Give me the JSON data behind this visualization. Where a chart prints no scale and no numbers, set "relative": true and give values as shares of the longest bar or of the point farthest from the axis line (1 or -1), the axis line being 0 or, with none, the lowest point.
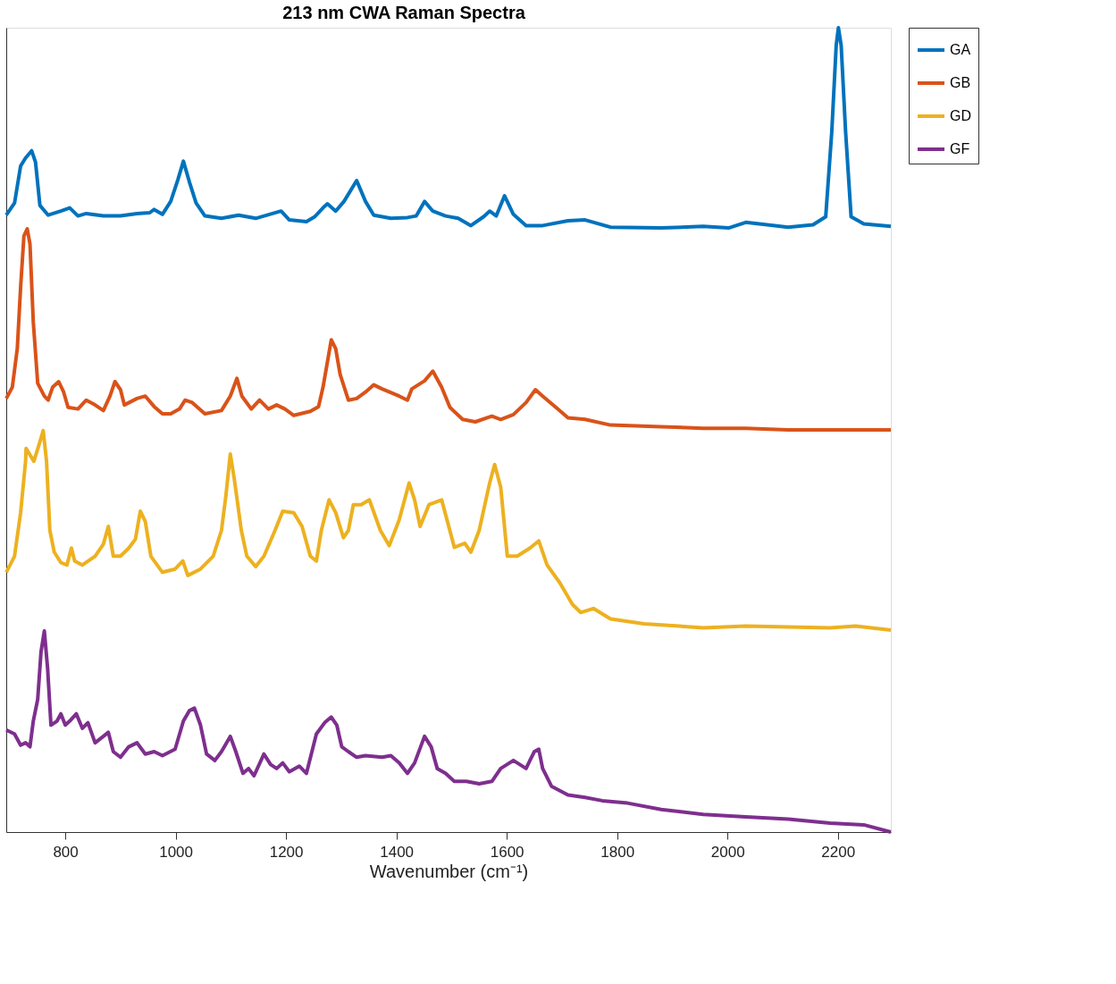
{
  "chart_data": {
    "type": "line",
    "title": "213 nm CWA Raman Spectra",
    "xlabel": "Wavenumber (cm⁻¹)",
    "relative": true,
    "legend": "top right",
    "xlim": [
      693,
      2296
    ],
    "xticks": [
      800,
      1000,
      1200,
      1400,
      1600,
      1800,
      2000,
      2200
    ],
    "series": [
      {
        "name": "GA",
        "color": "#0072bd",
        "x": [
          693,
          708,
          719,
          728,
          739,
          746,
          754,
          769,
          792,
          808,
          823,
          838,
          869,
          900,
          930,
          953,
          961,
          976,
          991,
          1004,
          1014,
          1025,
          1037,
          1053,
          1083,
          1114,
          1145,
          1191,
          1206,
          1237,
          1252,
          1267,
          1275,
          1290,
          1305,
          1328,
          1344,
          1359,
          1390,
          1420,
          1436,
          1451,
          1466,
          1489,
          1512,
          1535,
          1558,
          1569,
          1581,
          1596,
          1612,
          1635,
          1665,
          1711,
          1742,
          1788,
          1880,
          1956,
          2002,
          2033,
          2110,
          2155,
          2178,
          2189,
          2197,
          2201,
          2206,
          2214,
          2224,
          2247,
          2296
        ],
        "values": [
          0.767,
          0.782,
          0.828,
          0.838,
          0.847,
          0.833,
          0.779,
          0.767,
          0.772,
          0.776,
          0.766,
          0.769,
          0.766,
          0.766,
          0.769,
          0.77,
          0.774,
          0.768,
          0.784,
          0.811,
          0.834,
          0.808,
          0.782,
          0.766,
          0.763,
          0.767,
          0.763,
          0.772,
          0.761,
          0.759,
          0.765,
          0.776,
          0.781,
          0.772,
          0.784,
          0.81,
          0.784,
          0.767,
          0.763,
          0.764,
          0.766,
          0.784,
          0.772,
          0.766,
          0.763,
          0.754,
          0.765,
          0.772,
          0.766,
          0.791,
          0.768,
          0.754,
          0.754,
          0.76,
          0.761,
          0.752,
          0.751,
          0.753,
          0.751,
          0.758,
          0.752,
          0.755,
          0.765,
          0.871,
          0.978,
          1.0,
          0.978,
          0.871,
          0.765,
          0.756,
          0.753
        ]
      },
      {
        "name": "GB",
        "color": "#d95319",
        "x": [
          693,
          704,
          713,
          719,
          725,
          731,
          736,
          742,
          750,
          762,
          769,
          777,
          788,
          797,
          805,
          823,
          838,
          854,
          869,
          881,
          890,
          900,
          907,
          930,
          945,
          961,
          976,
          991,
          1007,
          1017,
          1030,
          1053,
          1083,
          1099,
          1111,
          1120,
          1137,
          1152,
          1168,
          1183,
          1198,
          1214,
          1244,
          1259,
          1267,
          1282,
          1290,
          1298,
          1313,
          1328,
          1344,
          1359,
          1374,
          1405,
          1420,
          1428,
          1451,
          1466,
          1482,
          1497,
          1520,
          1543,
          1573,
          1589,
          1612,
          1635,
          1652,
          1665,
          1689,
          1711,
          1742,
          1788,
          1880,
          1956,
          2033,
          2110,
          2186,
          2296
        ],
        "values": [
          0.539,
          0.553,
          0.601,
          0.677,
          0.741,
          0.75,
          0.731,
          0.634,
          0.558,
          0.542,
          0.537,
          0.553,
          0.56,
          0.547,
          0.528,
          0.526,
          0.537,
          0.531,
          0.524,
          0.542,
          0.56,
          0.55,
          0.531,
          0.539,
          0.542,
          0.529,
          0.52,
          0.52,
          0.526,
          0.537,
          0.534,
          0.52,
          0.524,
          0.542,
          0.564,
          0.542,
          0.526,
          0.537,
          0.526,
          0.531,
          0.526,
          0.518,
          0.523,
          0.529,
          0.553,
          0.612,
          0.601,
          0.569,
          0.537,
          0.539,
          0.547,
          0.556,
          0.551,
          0.542,
          0.537,
          0.551,
          0.561,
          0.573,
          0.553,
          0.528,
          0.513,
          0.51,
          0.517,
          0.513,
          0.519,
          0.534,
          0.55,
          0.542,
          0.528,
          0.515,
          0.513,
          0.506,
          0.504,
          0.502,
          0.502,
          0.5,
          0.5,
          0.5
        ]
      },
      {
        "name": "GD",
        "color": "#edb120",
        "x": [
          693,
          708,
          719,
          728,
          729,
          743,
          753,
          760,
          766,
          772,
          780,
          792,
          803,
          811,
          817,
          831,
          854,
          869,
          878,
          887,
          900,
          915,
          927,
          936,
          945,
          955,
          976,
          999,
          1013,
          1022,
          1045,
          1068,
          1083,
          1091,
          1099,
          1106,
          1119,
          1129,
          1145,
          1160,
          1180,
          1194,
          1214,
          1229,
          1244,
          1255,
          1264,
          1278,
          1290,
          1304,
          1313,
          1322,
          1336,
          1351,
          1371,
          1387,
          1405,
          1423,
          1433,
          1443,
          1459,
          1482,
          1505,
          1524,
          1535,
          1550,
          1569,
          1578,
          1589,
          1601,
          1619,
          1642,
          1658,
          1673,
          1696,
          1719,
          1734,
          1757,
          1788,
          1849,
          1956,
          2033,
          2186,
          2232,
          2296
        ],
        "values": [
          0.323,
          0.343,
          0.397,
          0.461,
          0.477,
          0.461,
          0.483,
          0.499,
          0.461,
          0.375,
          0.348,
          0.335,
          0.332,
          0.353,
          0.337,
          0.332,
          0.343,
          0.358,
          0.38,
          0.343,
          0.343,
          0.353,
          0.364,
          0.399,
          0.386,
          0.343,
          0.323,
          0.327,
          0.337,
          0.319,
          0.327,
          0.343,
          0.375,
          0.418,
          0.47,
          0.44,
          0.375,
          0.343,
          0.33,
          0.343,
          0.375,
          0.399,
          0.397,
          0.38,
          0.343,
          0.337,
          0.375,
          0.413,
          0.397,
          0.366,
          0.375,
          0.407,
          0.407,
          0.413,
          0.375,
          0.356,
          0.388,
          0.434,
          0.413,
          0.38,
          0.407,
          0.413,
          0.354,
          0.359,
          0.348,
          0.375,
          0.434,
          0.457,
          0.429,
          0.343,
          0.343,
          0.353,
          0.362,
          0.332,
          0.31,
          0.283,
          0.273,
          0.278,
          0.265,
          0.259,
          0.254,
          0.256,
          0.254,
          0.256,
          0.251
        ]
      },
      {
        "name": "GF",
        "color": "#7e2f8e",
        "x": [
          693,
          708,
          719,
          728,
          736,
          742,
          750,
          756,
          762,
          768,
          774,
          785,
          792,
          800,
          808,
          820,
          831,
          841,
          854,
          869,
          878,
          887,
          900,
          915,
          930,
          945,
          961,
          976,
          999,
          1014,
          1025,
          1034,
          1045,
          1056,
          1071,
          1083,
          1099,
          1109,
          1122,
          1132,
          1142,
          1160,
          1172,
          1183,
          1194,
          1206,
          1224,
          1237,
          1255,
          1270,
          1282,
          1292,
          1301,
          1313,
          1328,
          1344,
          1374,
          1390,
          1405,
          1420,
          1433,
          1451,
          1463,
          1474,
          1489,
          1505,
          1527,
          1550,
          1573,
          1589,
          1612,
          1635,
          1642,
          1650,
          1658,
          1665,
          1681,
          1711,
          1742,
          1773,
          1819,
          1880,
          1956,
          2033,
          2110,
          2186,
          2247,
          2296
        ],
        "values": [
          0.127,
          0.122,
          0.108,
          0.111,
          0.106,
          0.138,
          0.165,
          0.224,
          0.25,
          0.203,
          0.133,
          0.138,
          0.147,
          0.133,
          0.138,
          0.147,
          0.129,
          0.136,
          0.111,
          0.119,
          0.124,
          0.1,
          0.093,
          0.106,
          0.111,
          0.097,
          0.1,
          0.095,
          0.103,
          0.138,
          0.151,
          0.154,
          0.133,
          0.097,
          0.089,
          0.1,
          0.119,
          0.1,
          0.073,
          0.079,
          0.07,
          0.097,
          0.084,
          0.079,
          0.086,
          0.075,
          0.082,
          0.073,
          0.122,
          0.136,
          0.143,
          0.133,
          0.106,
          0.1,
          0.093,
          0.095,
          0.093,
          0.095,
          0.086,
          0.073,
          0.086,
          0.119,
          0.106,
          0.079,
          0.073,
          0.063,
          0.063,
          0.06,
          0.063,
          0.079,
          0.089,
          0.079,
          0.089,
          0.1,
          0.103,
          0.079,
          0.057,
          0.046,
          0.043,
          0.039,
          0.036,
          0.028,
          0.022,
          0.019,
          0.016,
          0.011,
          0.009,
          0.0
        ]
      }
    ]
  }
}
